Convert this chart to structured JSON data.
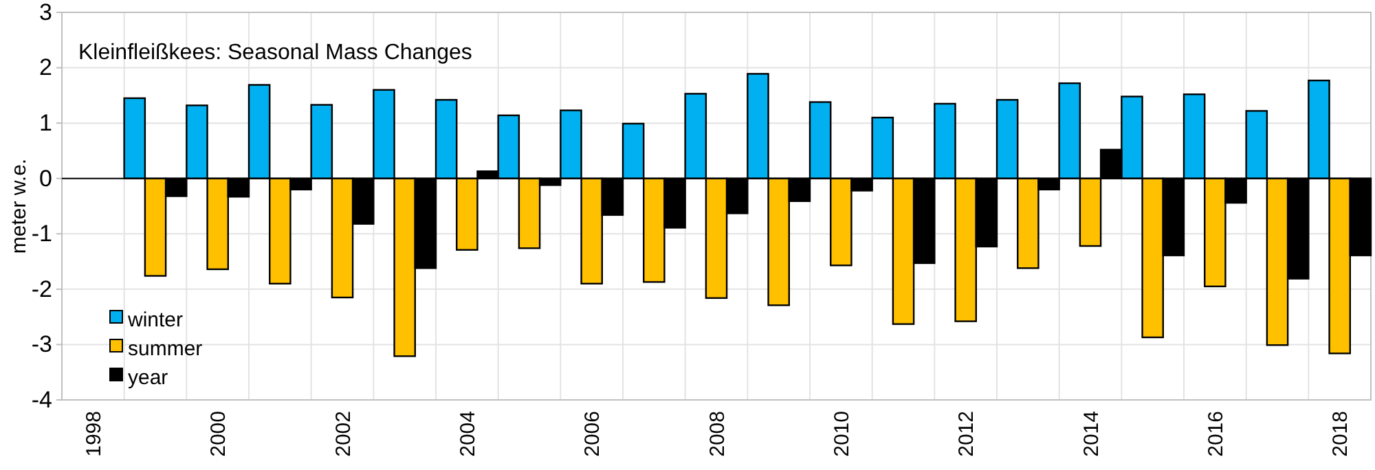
{
  "chart_data": {
    "type": "bar",
    "title": "Kleinfleißkees: Seasonal Mass Changes",
    "ylabel": "meter w.e.",
    "categories": [
      "1998",
      null,
      "2000",
      null,
      "2002",
      null,
      "2004",
      null,
      "2006",
      null,
      "2008",
      null,
      "2010",
      null,
      "2012",
      null,
      "2014",
      null,
      "2016",
      null,
      "2018"
    ],
    "series": [
      {
        "name": "winter",
        "color": "#00b0f0",
        "values": [
          null,
          1.45,
          1.32,
          1.69,
          1.33,
          1.6,
          1.42,
          1.14,
          1.23,
          0.99,
          1.53,
          1.89,
          1.38,
          1.1,
          1.35,
          1.42,
          1.72,
          1.48,
          1.52,
          1.22,
          1.77
        ]
      },
      {
        "name": "summer",
        "color": "#ffc000",
        "values": [
          null,
          -1.76,
          -1.64,
          -1.9,
          -2.15,
          -3.21,
          -1.29,
          -1.26,
          -1.9,
          -1.87,
          -2.16,
          -2.29,
          -1.57,
          -2.63,
          -2.58,
          -1.62,
          -1.22,
          -2.87,
          -1.95,
          -3.01,
          -3.16
        ]
      },
      {
        "name": "year",
        "color": "#000000",
        "values": [
          null,
          -0.32,
          -0.33,
          -0.2,
          -0.82,
          -1.62,
          0.13,
          -0.12,
          -0.66,
          -0.89,
          -0.63,
          -0.41,
          -0.22,
          -1.53,
          -1.23,
          -0.2,
          0.52,
          -1.39,
          -0.44,
          -1.81,
          -1.39
        ]
      }
    ],
    "ylim": [
      -4,
      3
    ],
    "yticks": [
      -4,
      -3,
      -2,
      -1,
      0,
      1,
      2,
      3
    ],
    "grid": true,
    "legend": "bottom left"
  }
}
